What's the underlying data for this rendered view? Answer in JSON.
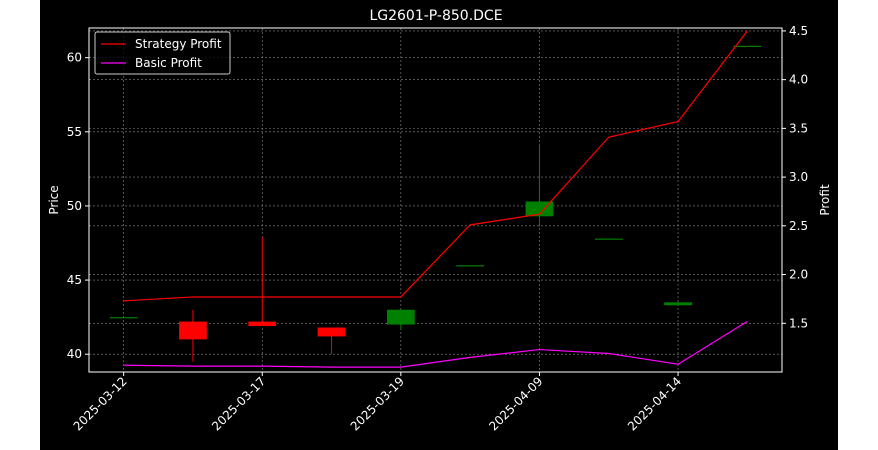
{
  "chart_data": {
    "type": "candlestick",
    "title": "LG2601-P-850.DCE",
    "xlabel": "",
    "ylabel": "Price",
    "y2label": "Profit",
    "x_ticks": [
      "2025-03-12",
      "2025-03-17",
      "2025-03-19",
      "2025-04-09",
      "2025-04-14"
    ],
    "x_tick_index": [
      0,
      2,
      4,
      6,
      8
    ],
    "xlim": [
      -0.5,
      9.5
    ],
    "ylim": [
      38.8,
      62.0
    ],
    "yticks": [
      40,
      45,
      50,
      55,
      60
    ],
    "y2lim": [
      1.0,
      4.53
    ],
    "y2ticks": [
      "1.5",
      "2.0",
      "2.5",
      "3.0",
      "3.5",
      "4.0",
      "4.5"
    ],
    "grid": true,
    "legend_position": "top-left",
    "candles": [
      {
        "i": 0,
        "open": 42.5,
        "high": 42.5,
        "low": 42.5,
        "close": 42.5
      },
      {
        "i": 1,
        "open": 42.2,
        "high": 43.0,
        "low": 39.5,
        "close": 41.0
      },
      {
        "i": 2,
        "open": 42.2,
        "high": 47.9,
        "low": 41.9,
        "close": 41.9
      },
      {
        "i": 3,
        "open": 41.8,
        "high": 41.8,
        "low": 40.0,
        "close": 41.2
      },
      {
        "i": 4,
        "open": 42.0,
        "high": 43.0,
        "low": 41.7,
        "close": 43.0
      },
      {
        "i": 5,
        "open": 46.0,
        "high": 46.0,
        "low": 46.0,
        "close": 46.0
      },
      {
        "i": 6,
        "open": 49.3,
        "high": 54.2,
        "low": 48.6,
        "close": 50.3
      },
      {
        "i": 7,
        "open": 47.8,
        "high": 47.8,
        "low": 47.8,
        "close": 47.8
      },
      {
        "i": 8,
        "open": 43.3,
        "high": 43.5,
        "low": 43.3,
        "close": 43.5
      },
      {
        "i": 9,
        "open": 60.8,
        "high": 60.8,
        "low": 60.8,
        "close": 60.8
      }
    ],
    "series": [
      {
        "name": "Strategy Profit",
        "color": "#ff0000",
        "values": [
          1.73,
          1.77,
          1.77,
          1.77,
          1.77,
          2.51,
          2.62,
          3.41,
          3.57,
          4.5
        ]
      },
      {
        "name": "Basic Profit",
        "color": "#ff00ff",
        "values": [
          1.07,
          1.06,
          1.06,
          1.05,
          1.05,
          1.15,
          1.23,
          1.19,
          1.08,
          1.52
        ]
      }
    ],
    "up_color": "#008000",
    "down_color": "#ff0000"
  }
}
